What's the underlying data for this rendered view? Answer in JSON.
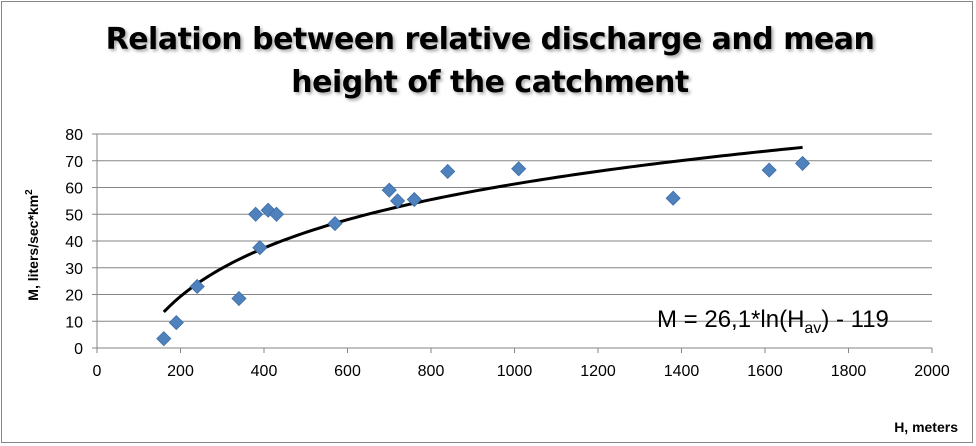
{
  "chart_data": {
    "type": "scatter",
    "title": "Relation between relative discharge and mean height of the catchment",
    "title_lines": [
      "Relation between relative discharge and mean",
      "height of the catchment"
    ],
    "xlabel": "H, meters",
    "ylabel": "M, liters/sec*km",
    "ylabel_superscript": "2",
    "xlim": [
      0,
      2000
    ],
    "ylim": [
      0,
      80
    ],
    "x_ticks": [
      0,
      200,
      400,
      600,
      800,
      1000,
      1200,
      1400,
      1600,
      1800,
      2000
    ],
    "y_ticks": [
      0,
      10,
      20,
      30,
      40,
      50,
      60,
      70,
      80
    ],
    "grid": "horizontal",
    "marker_color": "#4f81bd",
    "marker": "diamond",
    "points": [
      {
        "x": 160,
        "y": 3.5
      },
      {
        "x": 190,
        "y": 9.5
      },
      {
        "x": 240,
        "y": 23
      },
      {
        "x": 340,
        "y": 18.5
      },
      {
        "x": 380,
        "y": 50
      },
      {
        "x": 390,
        "y": 37.5
      },
      {
        "x": 410,
        "y": 51.5
      },
      {
        "x": 430,
        "y": 50
      },
      {
        "x": 570,
        "y": 46.5
      },
      {
        "x": 700,
        "y": 59
      },
      {
        "x": 720,
        "y": 55
      },
      {
        "x": 760,
        "y": 55.5
      },
      {
        "x": 840,
        "y": 66
      },
      {
        "x": 1010,
        "y": 67
      },
      {
        "x": 1380,
        "y": 56
      },
      {
        "x": 1610,
        "y": 66.5
      },
      {
        "x": 1690,
        "y": 69
      }
    ],
    "trendline": {
      "type": "logarithmic",
      "coef_a": 26.1,
      "coef_b": -119,
      "x_range": [
        160,
        1690
      ],
      "color": "#000000"
    },
    "equation": {
      "prefix": "M = 26,1*ln(H",
      "subscript": "av",
      "suffix": ") - 119"
    }
  }
}
